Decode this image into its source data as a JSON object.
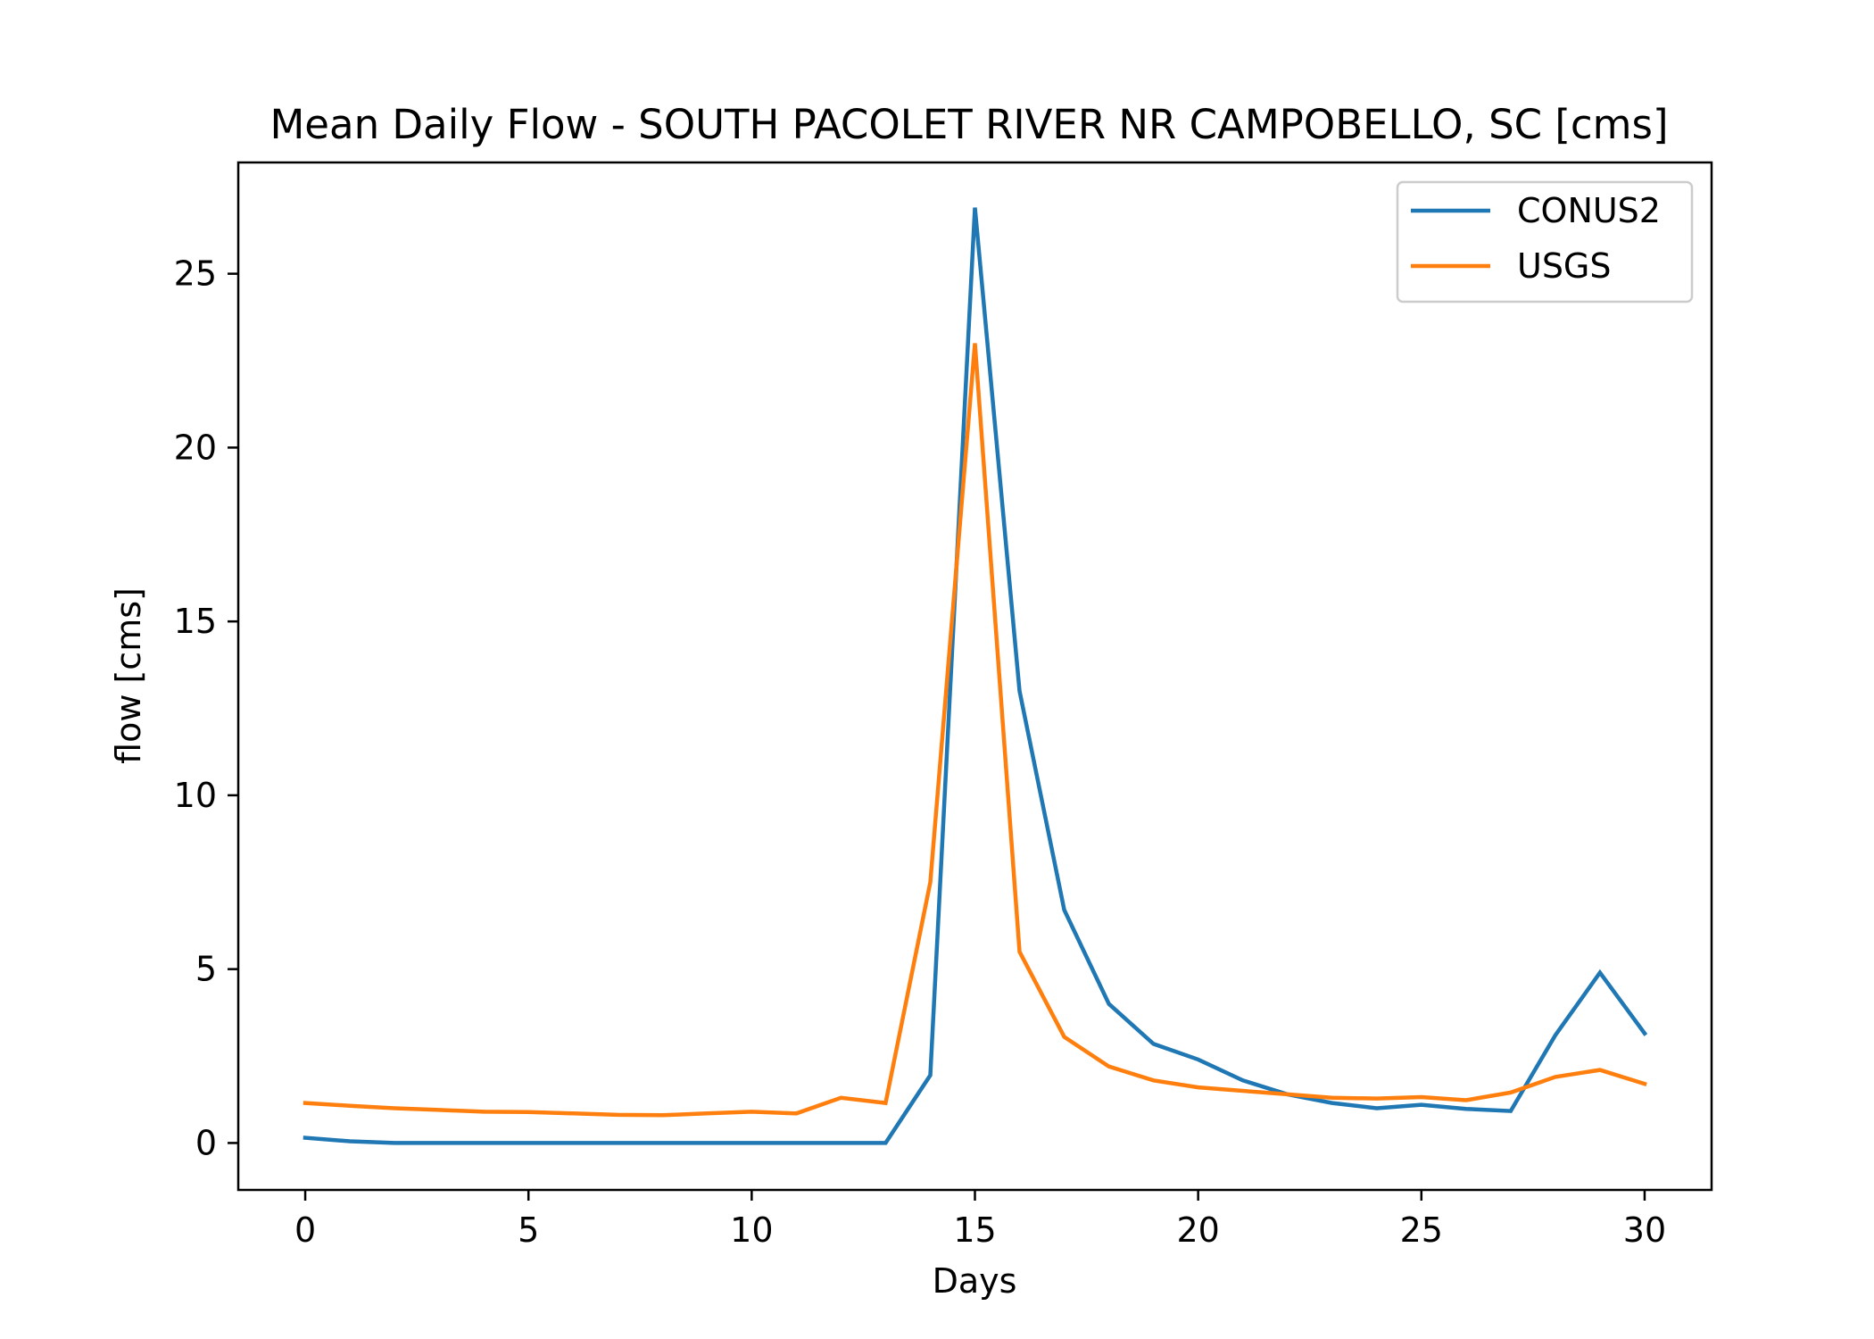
{
  "chart_data": {
    "type": "line",
    "title": "Mean Daily Flow - SOUTH PACOLET RIVER NR CAMPOBELLO, SC [cms]",
    "xlabel": "Days",
    "ylabel": "flow [cms]",
    "xlim": [
      -1.5,
      31.5
    ],
    "ylim": [
      -1.35,
      28.2
    ],
    "xticks": [
      0,
      5,
      10,
      15,
      20,
      25,
      30
    ],
    "yticks": [
      0,
      5,
      10,
      15,
      20,
      25
    ],
    "grid": false,
    "legend_position": "top-right",
    "x": [
      0,
      1,
      2,
      3,
      4,
      5,
      6,
      7,
      8,
      9,
      10,
      11,
      12,
      13,
      14,
      15,
      16,
      17,
      18,
      19,
      20,
      21,
      22,
      23,
      24,
      25,
      26,
      27,
      28,
      29,
      30
    ],
    "series": [
      {
        "name": "CONUS2",
        "color": "#1f77b4",
        "values": [
          0.15,
          0.05,
          0.0,
          0.0,
          0.0,
          0.0,
          0.0,
          0.0,
          0.0,
          0.0,
          0.0,
          0.0,
          0.0,
          0.0,
          1.95,
          26.9,
          13.0,
          6.7,
          4.0,
          2.85,
          2.4,
          1.8,
          1.4,
          1.15,
          1.0,
          1.1,
          0.98,
          0.92,
          3.1,
          4.9,
          3.15
        ]
      },
      {
        "name": "USGS",
        "color": "#ff7f0e",
        "values": [
          1.15,
          1.07,
          1.0,
          0.95,
          0.9,
          0.89,
          0.85,
          0.81,
          0.8,
          0.85,
          0.9,
          0.85,
          1.3,
          1.15,
          7.5,
          23.0,
          5.5,
          3.05,
          2.2,
          1.8,
          1.6,
          1.5,
          1.4,
          1.3,
          1.28,
          1.32,
          1.23,
          1.45,
          1.9,
          2.1,
          1.7
        ]
      }
    ]
  }
}
